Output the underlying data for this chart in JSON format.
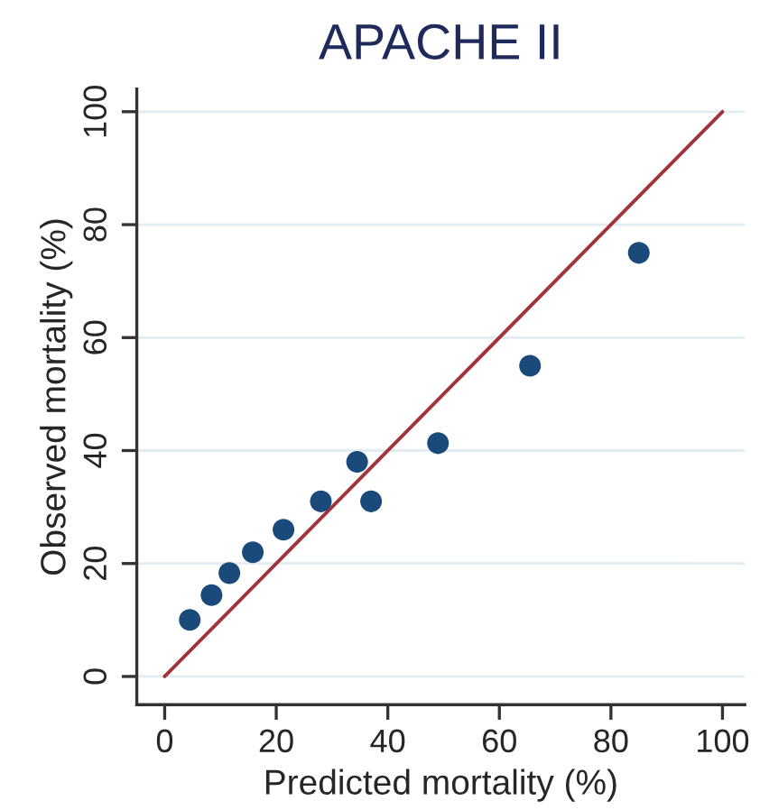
{
  "chart_data": {
    "type": "scatter",
    "title": "APACHE II",
    "xlabel": "Predicted mortality (%)",
    "ylabel": "Observed mortality (%)",
    "xlim": [
      -5,
      104
    ],
    "ylim": [
      -5,
      104
    ],
    "xticks": [
      0,
      20,
      40,
      60,
      80,
      100
    ],
    "yticks": [
      0,
      20,
      40,
      60,
      80,
      100
    ],
    "grid": "y",
    "marker": "circle",
    "series": [
      {
        "color": "#1a4a7a",
        "x": [
          4.5,
          8.4,
          11.6,
          15.8,
          21.3,
          28,
          34.5,
          37,
          49,
          65.5,
          85
        ],
        "values": [
          10,
          14.4,
          18.3,
          22,
          26,
          31,
          38,
          31,
          41.3,
          55,
          75
        ]
      },
      {
        "type": "line",
        "color": "#a0343a",
        "x": [
          0,
          100
        ],
        "values": [
          0,
          100
        ],
        "marker": "none",
        "line_style": "solid"
      }
    ]
  }
}
